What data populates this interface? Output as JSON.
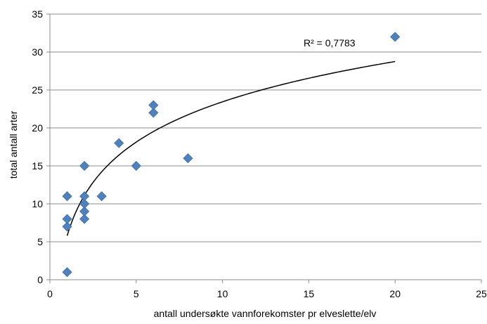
{
  "chart_data": {
    "type": "scatter",
    "xlabel": "antall undersøkte vannforekomster pr elveslette/elv",
    "ylabel": "total antall arter",
    "xlim": [
      0,
      25
    ],
    "ylim": [
      0,
      35
    ],
    "x_ticks": [
      "0",
      "5",
      "10",
      "15",
      "20",
      "25"
    ],
    "y_ticks": [
      "0",
      "5",
      "10",
      "15",
      "20",
      "25",
      "30",
      "35"
    ],
    "grid": "horizontal",
    "annotation": "R² = 0,7783",
    "marker_color": "#4f81bd",
    "trendline": {
      "type": "logarithmic",
      "a": 5.8,
      "b": 7.66,
      "x_range": [
        1,
        20
      ]
    },
    "points": [
      {
        "x": 1,
        "y": 1
      },
      {
        "x": 1,
        "y": 7
      },
      {
        "x": 1,
        "y": 8
      },
      {
        "x": 1,
        "y": 11
      },
      {
        "x": 2,
        "y": 8
      },
      {
        "x": 2,
        "y": 9
      },
      {
        "x": 2,
        "y": 10
      },
      {
        "x": 2,
        "y": 11
      },
      {
        "x": 2,
        "y": 15
      },
      {
        "x": 3,
        "y": 11
      },
      {
        "x": 4,
        "y": 18
      },
      {
        "x": 5,
        "y": 15
      },
      {
        "x": 6,
        "y": 22
      },
      {
        "x": 6,
        "y": 23
      },
      {
        "x": 8,
        "y": 16
      },
      {
        "x": 20,
        "y": 32
      }
    ]
  }
}
